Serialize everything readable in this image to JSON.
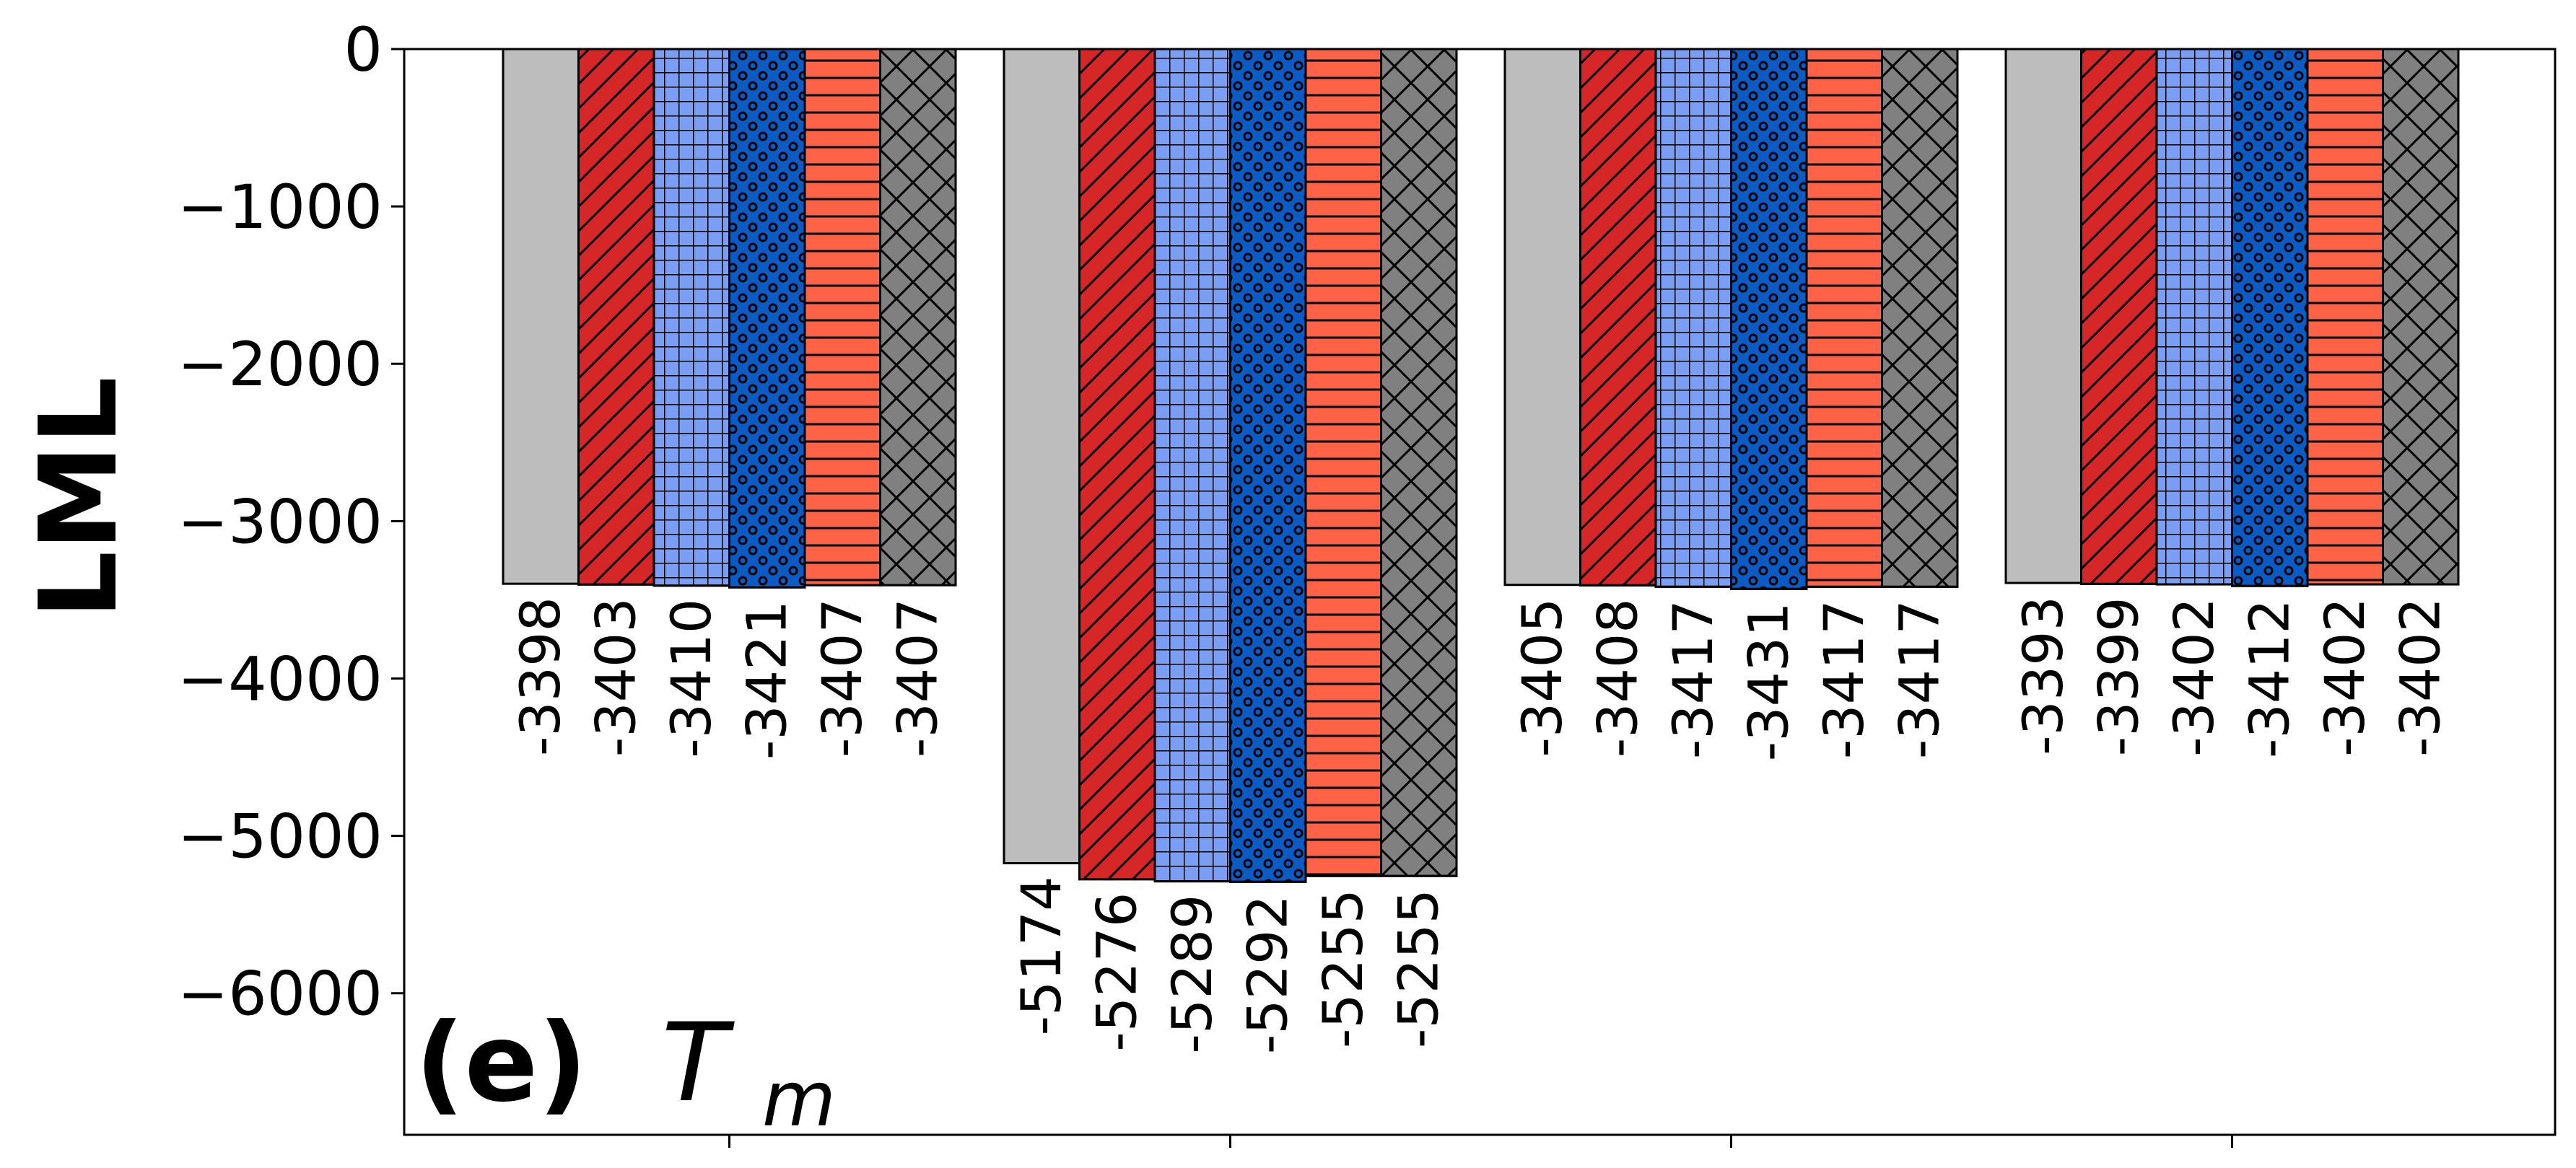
{
  "chart_data": {
    "type": "bar",
    "title": "",
    "panel_label": {
      "prefix": "(e)",
      "symbol": "T",
      "subscript": "m"
    },
    "xlabel": "",
    "ylabel": "LML",
    "ylim": [
      -6900,
      0
    ],
    "yticks": [
      0,
      -1000,
      -2000,
      -3000,
      -4000,
      -5000,
      -6000
    ],
    "ytick_labels": [
      "0",
      "−1000",
      "−2000",
      "−3000",
      "−4000",
      "−5000",
      "−6000"
    ],
    "categories": [
      "",
      "",
      "",
      ""
    ],
    "grid": false,
    "series": [
      {
        "color": "#bdbdbd",
        "hatch": "none",
        "values": [
          -3398,
          -5174,
          -3405,
          -3393
        ]
      },
      {
        "color": "#d62728",
        "hatch": "diagonal",
        "values": [
          -3403,
          -5276,
          -3408,
          -3399
        ]
      },
      {
        "color": "#7b9ef5",
        "hatch": "grid",
        "values": [
          -3410,
          -5289,
          -3417,
          -3402
        ]
      },
      {
        "color": "#0b5bc4",
        "hatch": "dots",
        "values": [
          -3421,
          -5292,
          -3431,
          -3412
        ]
      },
      {
        "color": "#ff6347",
        "hatch": "horizontal",
        "values": [
          -3407,
          -5255,
          -3417,
          -3402
        ]
      },
      {
        "color": "#808080",
        "hatch": "crosshatch",
        "values": [
          -3407,
          -5255,
          -3417,
          -3402
        ]
      }
    ]
  }
}
